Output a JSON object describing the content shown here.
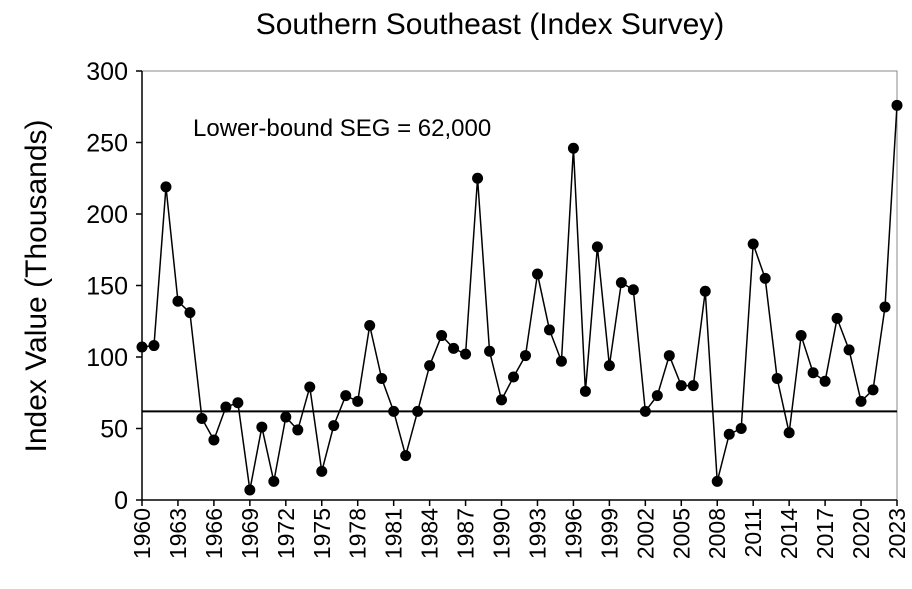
{
  "chart_data": {
    "type": "line",
    "title": "Southern Southeast  (Index Survey)",
    "y_label": "Index Value (Thousands)",
    "annotation": "Lower-bound SEG = 62,000",
    "reference_line": 62,
    "color": "#000000",
    "x": [
      1960,
      1961,
      1962,
      1963,
      1964,
      1965,
      1966,
      1967,
      1968,
      1969,
      1970,
      1971,
      1972,
      1973,
      1974,
      1975,
      1976,
      1977,
      1978,
      1979,
      1980,
      1981,
      1982,
      1983,
      1984,
      1985,
      1986,
      1987,
      1988,
      1989,
      1990,
      1991,
      1992,
      1993,
      1994,
      1995,
      1996,
      1997,
      1998,
      1999,
      2000,
      2001,
      2002,
      2003,
      2004,
      2005,
      2006,
      2007,
      2008,
      2009,
      2010,
      2011,
      2012,
      2013,
      2014,
      2015,
      2016,
      2017,
      2018,
      2019,
      2020,
      2021,
      2022,
      2023
    ],
    "values": [
      107,
      108,
      219,
      139,
      131,
      57,
      42,
      65,
      68,
      7,
      51,
      13,
      58,
      49,
      79,
      20,
      52,
      73,
      69,
      122,
      85,
      62,
      31,
      62,
      94,
      115,
      106,
      102,
      225,
      104,
      70,
      86,
      101,
      158,
      119,
      97,
      246,
      76,
      177,
      94,
      152,
      147,
      62,
      73,
      101,
      80,
      80,
      146,
      13,
      46,
      50,
      179,
      155,
      85,
      47,
      115,
      89,
      83,
      127,
      105,
      69,
      77,
      135,
      276
    ],
    "xlim": [
      1960,
      2023
    ],
    "xticks": [
      1960,
      1963,
      1966,
      1969,
      1972,
      1975,
      1978,
      1981,
      1984,
      1987,
      1990,
      1993,
      1996,
      1999,
      2002,
      2005,
      2008,
      2011,
      2014,
      2017,
      2020,
      2023
    ],
    "ylim": [
      0,
      300
    ],
    "yticks": [
      0,
      50,
      100,
      150,
      200,
      250,
      300
    ]
  }
}
